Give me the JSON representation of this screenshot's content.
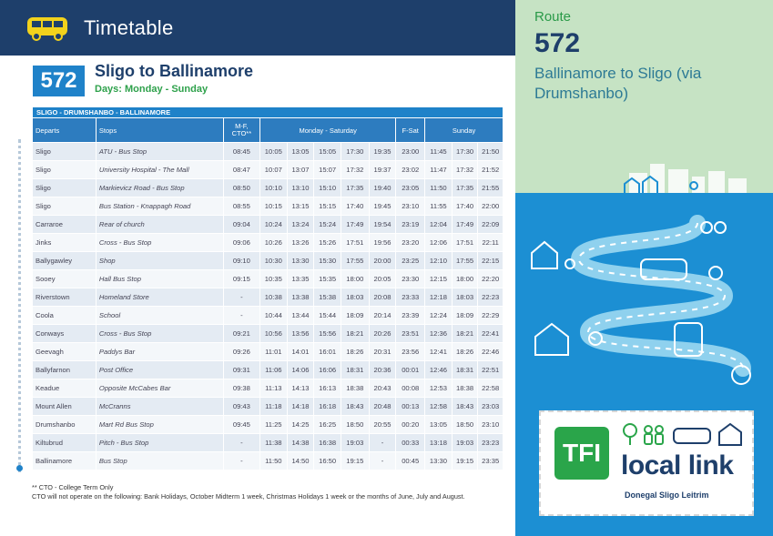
{
  "header": {
    "title": "Timetable",
    "icon": "bus-icon"
  },
  "route": {
    "number": "572",
    "name": "Sligo to Ballinamore",
    "days": "Days: Monday - Sunday"
  },
  "table": {
    "segment": "SLIGO - DRUMSHANBO - BALLINAMORE",
    "columns": {
      "departs": "Departs",
      "stops": "Stops",
      "mf_cto": "M-F, CTO**",
      "mon_sat": "Monday - Saturday",
      "f_sat": "F-Sat",
      "sunday": "Sunday"
    },
    "rows": [
      {
        "place": "Sligo",
        "stop": "ATU - Bus Stop",
        "cto": "08:45",
        "t": [
          "10:05",
          "13:05",
          "15:05",
          "17:30",
          "19:35",
          "23:00",
          "11:45",
          "17:30",
          "21:50"
        ]
      },
      {
        "place": "Sligo",
        "stop": "University Hospital - The Mall",
        "cto": "08:47",
        "t": [
          "10:07",
          "13:07",
          "15:07",
          "17:32",
          "19:37",
          "23:02",
          "11:47",
          "17:32",
          "21:52"
        ]
      },
      {
        "place": "Sligo",
        "stop": "Markievicz Road - Bus Stop",
        "cto": "08:50",
        "t": [
          "10:10",
          "13:10",
          "15:10",
          "17:35",
          "19:40",
          "23:05",
          "11:50",
          "17:35",
          "21:55"
        ]
      },
      {
        "place": "Sligo",
        "stop": "Bus Station - Knappagh Road",
        "cto": "08:55",
        "t": [
          "10:15",
          "13:15",
          "15:15",
          "17:40",
          "19:45",
          "23:10",
          "11:55",
          "17:40",
          "22:00"
        ]
      },
      {
        "place": "Carraroe",
        "stop": "Rear of church",
        "cto": "09:04",
        "t": [
          "10:24",
          "13:24",
          "15:24",
          "17:49",
          "19:54",
          "23:19",
          "12:04",
          "17:49",
          "22:09"
        ]
      },
      {
        "place": "Jinks",
        "stop": "Cross - Bus Stop",
        "cto": "09:06",
        "t": [
          "10:26",
          "13:26",
          "15:26",
          "17:51",
          "19:56",
          "23:20",
          "12:06",
          "17:51",
          "22:11"
        ]
      },
      {
        "place": "Ballygawley",
        "stop": "Shop",
        "cto": "09:10",
        "t": [
          "10:30",
          "13:30",
          "15:30",
          "17:55",
          "20:00",
          "23:25",
          "12:10",
          "17:55",
          "22:15"
        ]
      },
      {
        "place": "Sooey",
        "stop": "Hall Bus Stop",
        "cto": "09:15",
        "t": [
          "10:35",
          "13:35",
          "15:35",
          "18:00",
          "20:05",
          "23:30",
          "12:15",
          "18:00",
          "22:20"
        ]
      },
      {
        "place": "Riverstown",
        "stop": "Homeland Store",
        "cto": "-",
        "t": [
          "10:38",
          "13:38",
          "15:38",
          "18:03",
          "20:08",
          "23:33",
          "12:18",
          "18:03",
          "22:23"
        ]
      },
      {
        "place": "Coola",
        "stop": "School",
        "cto": "-",
        "t": [
          "10:44",
          "13:44",
          "15:44",
          "18:09",
          "20:14",
          "23:39",
          "12:24",
          "18:09",
          "22:29"
        ]
      },
      {
        "place": "Conways",
        "stop": "Cross - Bus Stop",
        "cto": "09:21",
        "t": [
          "10:56",
          "13:56",
          "15:56",
          "18:21",
          "20:26",
          "23:51",
          "12:36",
          "18:21",
          "22:41"
        ]
      },
      {
        "place": "Geevagh",
        "stop": "Paddys Bar",
        "cto": "09:26",
        "t": [
          "11:01",
          "14:01",
          "16:01",
          "18:26",
          "20:31",
          "23:56",
          "12:41",
          "18:26",
          "22:46"
        ]
      },
      {
        "place": "Ballyfarnon",
        "stop": "Post Office",
        "cto": "09:31",
        "t": [
          "11:06",
          "14:06",
          "16:06",
          "18:31",
          "20:36",
          "00:01",
          "12:46",
          "18:31",
          "22:51"
        ]
      },
      {
        "place": "Keadue",
        "stop": "Opposite McCabes Bar",
        "cto": "09:38",
        "t": [
          "11:13",
          "14:13",
          "16:13",
          "18:38",
          "20:43",
          "00:08",
          "12:53",
          "18:38",
          "22:58"
        ]
      },
      {
        "place": "Mount Allen",
        "stop": "McCranns",
        "cto": "09:43",
        "t": [
          "11:18",
          "14:18",
          "16:18",
          "18:43",
          "20:48",
          "00:13",
          "12:58",
          "18:43",
          "23:03"
        ]
      },
      {
        "place": "Drumshanbo",
        "stop": "Mart Rd Bus Stop",
        "cto": "09:45",
        "t": [
          "11:25",
          "14:25",
          "16:25",
          "18:50",
          "20:55",
          "00:20",
          "13:05",
          "18:50",
          "23:10"
        ]
      },
      {
        "place": "Kiltubrud",
        "stop": "Pitch - Bus Stop",
        "cto": "-",
        "t": [
          "11:38",
          "14:38",
          "16:38",
          "19:03",
          "-",
          "00:33",
          "13:18",
          "19:03",
          "23:23"
        ]
      },
      {
        "place": "Ballinamore",
        "stop": "Bus Stop",
        "cto": "-",
        "t": [
          "11:50",
          "14:50",
          "16:50",
          "19:15",
          "-",
          "00:45",
          "13:30",
          "19:15",
          "23:35"
        ]
      }
    ]
  },
  "footnotes": {
    "line1": "** CTO - College Term Only",
    "line2": "CTO will not operate on the following: Bank Holidays, October Midterm 1 week, Christmas Holidays 1 week or the months of June, July and August."
  },
  "panel": {
    "label": "Route",
    "number": "572",
    "destination": "Ballinamore to Sligo (via Drumshanbo)",
    "colors": {
      "top": "#c6e3c4",
      "bottom": "#1c8fd3",
      "green": "#2a9a48",
      "navy": "#1e3f6b"
    }
  },
  "logo": {
    "tfi": "TFI",
    "brand": "local link",
    "region": "Donegal Sligo Leitrim"
  }
}
